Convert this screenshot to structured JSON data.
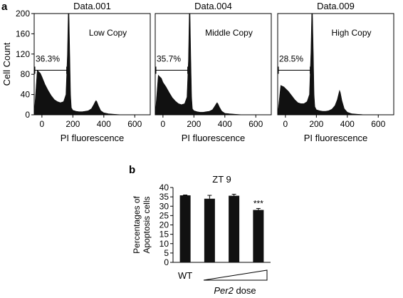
{
  "panel_labels": {
    "a": "a",
    "b": "b"
  },
  "chart_data": [
    {
      "type": "area",
      "panel": "a",
      "title": "Data.001",
      "annotation": "Low Copy",
      "gate_percent": "36.3%",
      "gate_range": [
        0,
        160
      ],
      "ylabel": "Cell Count",
      "xlabel": "PI fluorescence",
      "xlim": [
        -50,
        700
      ],
      "ylim": [
        0,
        200
      ],
      "xticks": [
        "0",
        "200",
        "400",
        "600"
      ],
      "yticks": [
        "0",
        "40",
        "80",
        "120",
        "160",
        "200"
      ],
      "x": [
        -50,
        -30,
        -10,
        0,
        20,
        40,
        60,
        80,
        100,
        120,
        140,
        155,
        165,
        170,
        175,
        180,
        185,
        190,
        200,
        220,
        240,
        260,
        280,
        300,
        320,
        335,
        345,
        350,
        355,
        365,
        380,
        400,
        430,
        470,
        520,
        580,
        650,
        700
      ],
      "values": [
        0,
        88,
        82,
        75,
        60,
        48,
        38,
        30,
        26,
        24,
        26,
        40,
        120,
        200,
        200,
        120,
        40,
        14,
        9,
        7,
        6,
        6,
        7,
        8,
        12,
        20,
        26,
        28,
        26,
        18,
        8,
        4,
        2,
        1,
        0,
        0,
        0,
        0
      ]
    },
    {
      "type": "area",
      "panel": "a",
      "title": "Data.004",
      "annotation": "Middle Copy",
      "gate_percent": "35.7%",
      "gate_range": [
        0,
        160
      ],
      "ylabel": "",
      "xlabel": "PI fluorescence",
      "xlim": [
        -50,
        700
      ],
      "ylim": [
        0,
        200
      ],
      "xticks": [
        "0",
        "200",
        "400",
        "600"
      ],
      "yticks": [],
      "x": [
        -50,
        -30,
        -10,
        0,
        20,
        40,
        60,
        80,
        100,
        120,
        140,
        155,
        165,
        170,
        175,
        180,
        185,
        190,
        200,
        220,
        240,
        260,
        280,
        300,
        320,
        335,
        345,
        350,
        355,
        365,
        380,
        400,
        430,
        470,
        520,
        580,
        650,
        700
      ],
      "values": [
        0,
        78,
        72,
        64,
        55,
        44,
        34,
        27,
        22,
        20,
        22,
        35,
        110,
        200,
        200,
        110,
        35,
        12,
        8,
        6,
        5,
        5,
        6,
        7,
        10,
        17,
        22,
        24,
        22,
        15,
        7,
        3,
        2,
        1,
        0,
        0,
        0,
        0
      ]
    },
    {
      "type": "area",
      "panel": "a",
      "title": "Data.009",
      "annotation": "High Copy",
      "gate_percent": "28.5%",
      "gate_range": [
        0,
        160
      ],
      "ylabel": "",
      "xlabel": "PI fluorescence",
      "xlim": [
        -50,
        700
      ],
      "ylim": [
        0,
        200
      ],
      "xticks": [
        "0",
        "200",
        "400",
        "600"
      ],
      "yticks": [],
      "x": [
        -50,
        -30,
        -10,
        0,
        20,
        40,
        60,
        80,
        100,
        120,
        140,
        155,
        165,
        170,
        175,
        180,
        185,
        190,
        200,
        220,
        240,
        260,
        280,
        300,
        320,
        335,
        345,
        350,
        355,
        365,
        380,
        400,
        430,
        470,
        520,
        580,
        650,
        700
      ],
      "values": [
        0,
        58,
        55,
        52,
        46,
        38,
        30,
        24,
        22,
        22,
        26,
        40,
        125,
        200,
        200,
        125,
        40,
        16,
        10,
        8,
        7,
        7,
        8,
        11,
        18,
        30,
        42,
        48,
        44,
        28,
        12,
        5,
        2,
        1,
        0,
        0,
        0,
        0
      ]
    },
    {
      "type": "bar",
      "panel": "b",
      "title": "ZT 9",
      "ylabel": "Percentages of\nApoptosis cells",
      "ylim": [
        0,
        40
      ],
      "yticks": [
        "0",
        "5",
        "10",
        "15",
        "20",
        "25",
        "30",
        "35",
        "40"
      ],
      "categories": [
        "WT",
        "",
        "",
        ""
      ],
      "values": [
        35.8,
        34.0,
        35.6,
        28.0
      ],
      "errors": [
        0.2,
        1.8,
        0.8,
        0.8
      ],
      "significance": [
        "",
        "",
        "",
        "***"
      ],
      "dose_label_italic": "Per2",
      "dose_label_rest": " dose"
    }
  ]
}
